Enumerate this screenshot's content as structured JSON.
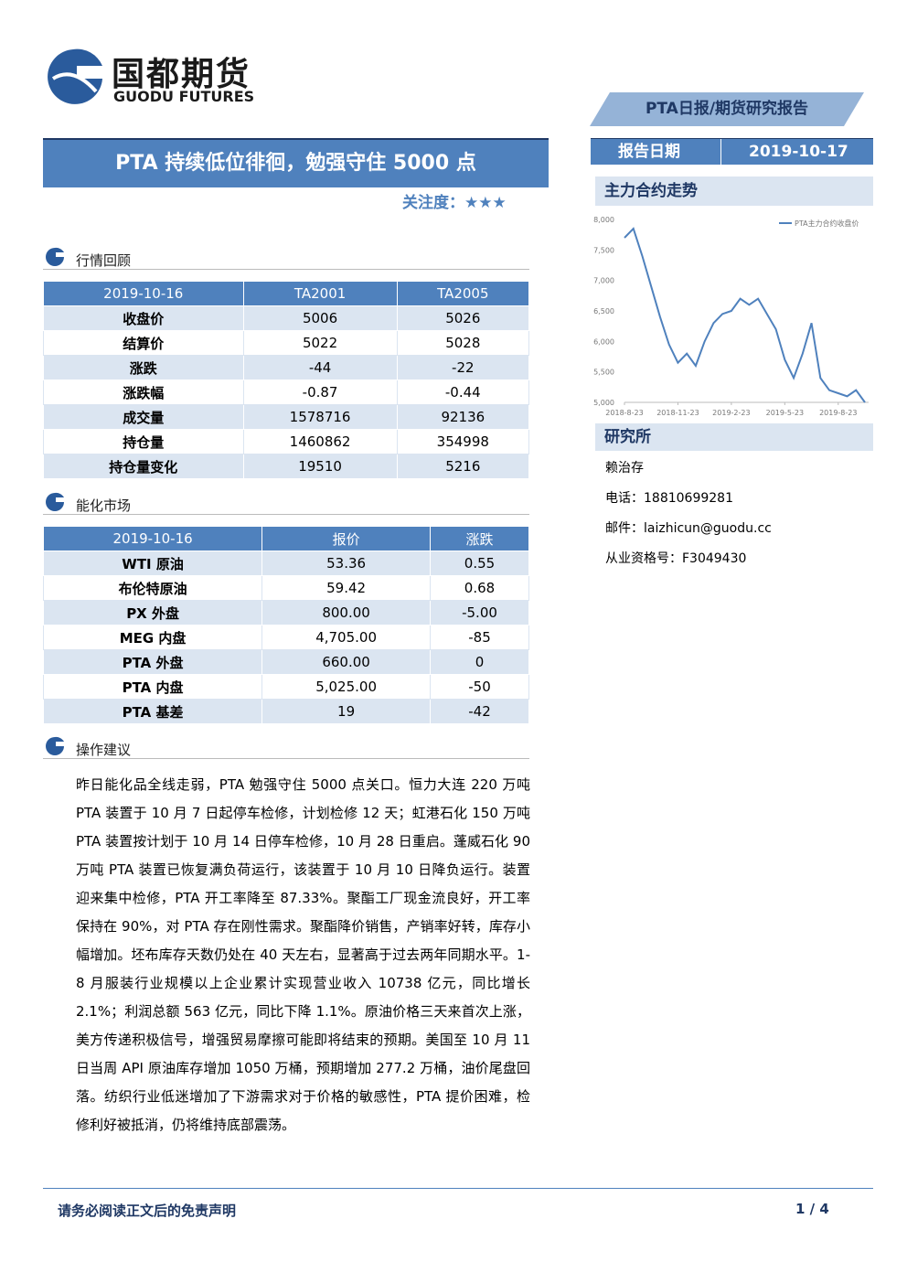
{
  "header": {
    "logo_cn": "国都期货",
    "logo_en": "GUODU FUTURES",
    "report_type": "PTA日报/期货研究报告",
    "title": "PTA 持续低位徘徊，勉强守住 5000 点",
    "attention_label": "关注度：",
    "attention_stars": "★★★",
    "date_label": "报告日期",
    "date_value": "2019-10-17"
  },
  "sections": [
    {
      "title": "行情回顾",
      "table": {
        "header": [
          "2019-10-16",
          "TA2001",
          "TA2005"
        ],
        "rows": [
          [
            "收盘价",
            "5006",
            "5026"
          ],
          [
            "结算价",
            "5022",
            "5028"
          ],
          [
            "涨跌",
            "-44",
            "-22"
          ],
          [
            "涨跌幅",
            "-0.87",
            "-0.44"
          ],
          [
            "成交量",
            "1578716",
            "92136"
          ],
          [
            "持仓量",
            "1460862",
            "354998"
          ],
          [
            "持仓量变化",
            "19510",
            "5216"
          ]
        ]
      }
    },
    {
      "title": "能化市场",
      "table": {
        "header": [
          "2019-10-16",
          "报价",
          "涨跌"
        ],
        "rows": [
          [
            "WTI 原油",
            "53.36",
            "0.55"
          ],
          [
            "布伦特原油",
            "59.42",
            "0.68"
          ],
          [
            "PX 外盘",
            "800.00",
            "-5.00"
          ],
          [
            "MEG 内盘",
            "4,705.00",
            "-85"
          ],
          [
            "PTA 外盘",
            "660.00",
            "0"
          ],
          [
            "PTA 内盘",
            "5,025.00",
            "-50"
          ],
          [
            "PTA 基差",
            "19",
            "-42"
          ]
        ]
      }
    },
    {
      "title": "操作建议",
      "text": "昨日能化品全线走弱，PTA 勉强守住 5000 点关口。恒力大连 220 万吨 PTA 装置于 10 月 7 日起停车检修，计划检修 12 天；虹港石化 150 万吨 PTA 装置按计划于 10 月 14 日停车检修，10 月 28 日重启。蓬威石化 90 万吨 PTA 装置已恢复满负荷运行，该装置于 10 月 10 日降负运行。装置迎来集中检修，PTA 开工率降至 87.33%。聚酯工厂现金流良好，开工率保持在 90%，对 PTA 存在刚性需求。聚酯降价销售，产销率好转，库存小幅增加。坯布库存天数仍处在 40 天左右，显著高于过去两年同期水平。1-8 月服装行业规模以上企业累计实现营业收入 10738 亿元，同比增长 2.1%；利润总额 563 亿元，同比下降 1.1%。原油价格三天来首次上涨，美方传递积极信号，增强贸易摩擦可能即将结束的预期。美国至 10 月 11 日当周 API 原油库存增加 1050 万桶，预期增加 277.2 万桶，油价尾盘回落。纺织行业低迷增加了下游需求对于价格的敏感性，PTA 提价困难，检修利好被抵消，仍将维持底部震荡。"
    }
  ],
  "sidebar": {
    "chart_title": "主力合约走势",
    "research_title": "研究所",
    "contacts": [
      "赖治存",
      "电话：18810699281",
      "邮件：laizhicun@guodu.cc",
      "从业资格号：F3049430"
    ]
  },
  "chart_data": {
    "type": "line",
    "categories": [
      "2018-8-23",
      null,
      null,
      null,
      null,
      null,
      "2018-11-23",
      null,
      null,
      null,
      null,
      null,
      "2019-2-23",
      null,
      null,
      null,
      null,
      null,
      "2019-5-23",
      null,
      null,
      null,
      null,
      null,
      "2019-8-23",
      null,
      null,
      null
    ],
    "series": [
      {
        "name": "PTA主力合约收盘价",
        "color": "#4f81bd",
        "values": [
          7700,
          7850,
          7400,
          6900,
          6400,
          5950,
          5650,
          5800,
          5600,
          6000,
          6300,
          6450,
          6500,
          6700,
          6600,
          6700,
          6450,
          6200,
          5700,
          5400,
          5800,
          6300,
          5400,
          5200,
          5150,
          5100,
          5200,
          5000
        ]
      }
    ],
    "ylim": [
      5000,
      8000
    ],
    "yticks": [
      {
        "value": 5000,
        "label": "5,000"
      },
      {
        "value": 5500,
        "label": "5,500"
      },
      {
        "value": 6000,
        "label": "6,000"
      },
      {
        "value": 6500,
        "label": "6,500"
      },
      {
        "value": 7000,
        "label": "7,000"
      },
      {
        "value": 7500,
        "label": "7,500"
      },
      {
        "value": 8000,
        "label": "8,000"
      }
    ]
  },
  "footer": {
    "disclaimer": "请务必阅读正文后的免责声明",
    "page": "1 / 4"
  }
}
